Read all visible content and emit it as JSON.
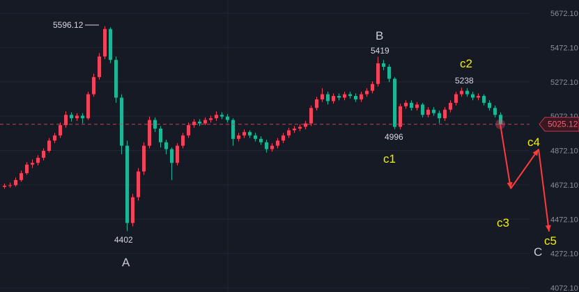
{
  "chart_data": {
    "type": "candlestick",
    "y_axis": {
      "ticks": [
        "5672.10",
        "5472.10",
        "5272.10",
        "5072.10",
        "4872.10",
        "4672.10",
        "4472.10",
        "4272.10",
        "4072.10"
      ],
      "tick_values": [
        5672.1,
        5472.1,
        5272.1,
        5072.1,
        4872.1,
        4672.1,
        4472.1,
        4272.1,
        4072.1
      ],
      "ylim": [
        4072.1,
        5672.1
      ],
      "position": "right"
    },
    "grid": true,
    "colors": {
      "up": "#f0435c",
      "down": "#1db597",
      "background": "#161a25",
      "grid": "#232733",
      "arrow": "#ff3b3b",
      "wave_label": "#f4f000"
    },
    "last_price": {
      "value": 5025.12,
      "label": "5025.12"
    },
    "ohlc": [
      [
        4660,
        4680,
        4650,
        4667
      ],
      [
        4667,
        4685,
        4655,
        4670
      ],
      [
        4670,
        4715,
        4662,
        4700
      ],
      [
        4700,
        4755,
        4690,
        4740
      ],
      [
        4740,
        4805,
        4730,
        4790
      ],
      [
        4790,
        4820,
        4770,
        4800
      ],
      [
        4800,
        4845,
        4785,
        4830
      ],
      [
        4830,
        4885,
        4815,
        4870
      ],
      [
        4870,
        4945,
        4860,
        4930
      ],
      [
        4930,
        4975,
        4915,
        4960
      ],
      [
        4960,
        5035,
        4945,
        5020
      ],
      [
        5020,
        5100,
        5005,
        5080
      ],
      [
        5080,
        5095,
        5040,
        5060
      ],
      [
        5060,
        5090,
        5045,
        5075
      ],
      [
        5075,
        5090,
        5030,
        5060
      ],
      [
        5060,
        5215,
        5050,
        5200
      ],
      [
        5200,
        5320,
        5185,
        5300
      ],
      [
        5300,
        5440,
        5285,
        5420
      ],
      [
        5420,
        5596.12,
        5405,
        5580
      ],
      [
        5580,
        5590,
        5380,
        5400
      ],
      [
        5400,
        5420,
        5150,
        5180
      ],
      [
        5180,
        5200,
        4850,
        4900
      ],
      [
        4900,
        4930,
        4402,
        4450
      ],
      [
        4450,
        4620,
        4430,
        4600
      ],
      [
        4600,
        4770,
        4580,
        4750
      ],
      [
        4750,
        4920,
        4730,
        4900
      ],
      [
        4900,
        5070,
        4885,
        5050
      ],
      [
        5050,
        5065,
        4980,
        5000
      ],
      [
        5000,
        5015,
        4890,
        4920
      ],
      [
        4920,
        4935,
        4850,
        4880
      ],
      [
        4880,
        4890,
        4700,
        4800
      ],
      [
        4800,
        4915,
        4785,
        4900
      ],
      [
        4900,
        4975,
        4885,
        4960
      ],
      [
        4960,
        5035,
        4945,
        5020
      ],
      [
        5020,
        5055,
        5005,
        5040
      ],
      [
        5040,
        5055,
        5015,
        5030
      ],
      [
        5030,
        5065,
        5020,
        5050
      ],
      [
        5050,
        5075,
        5035,
        5060
      ],
      [
        5060,
        5100,
        5045,
        5080
      ],
      [
        5080,
        5095,
        5055,
        5070
      ],
      [
        5070,
        5085,
        5035,
        5050
      ],
      [
        5050,
        5060,
        4900,
        4940
      ],
      [
        4940,
        4975,
        4925,
        4960
      ],
      [
        4960,
        4995,
        4945,
        4980
      ],
      [
        4980,
        4990,
        4945,
        4960
      ],
      [
        4960,
        4975,
        4925,
        4940
      ],
      [
        4940,
        4955,
        4905,
        4920
      ],
      [
        4920,
        4935,
        4860,
        4880
      ],
      [
        4880,
        4915,
        4865,
        4900
      ],
      [
        4900,
        4945,
        4885,
        4930
      ],
      [
        4930,
        4975,
        4915,
        4960
      ],
      [
        4960,
        5005,
        4945,
        4990
      ],
      [
        4990,
        5015,
        4975,
        5000
      ],
      [
        5000,
        5025,
        4985,
        5010
      ],
      [
        5010,
        5045,
        4995,
        5030
      ],
      [
        5030,
        5135,
        5015,
        5120
      ],
      [
        5120,
        5185,
        5105,
        5170
      ],
      [
        5170,
        5235,
        5155,
        5200
      ],
      [
        5200,
        5215,
        5140,
        5160
      ],
      [
        5160,
        5205,
        5145,
        5190
      ],
      [
        5190,
        5205,
        5165,
        5180
      ],
      [
        5180,
        5215,
        5165,
        5200
      ],
      [
        5200,
        5215,
        5175,
        5190
      ],
      [
        5190,
        5205,
        5155,
        5170
      ],
      [
        5170,
        5215,
        5155,
        5200
      ],
      [
        5200,
        5235,
        5185,
        5220
      ],
      [
        5220,
        5275,
        5205,
        5260
      ],
      [
        5260,
        5419,
        5245,
        5380
      ],
      [
        5380,
        5400,
        5340,
        5360
      ],
      [
        5360,
        5375,
        5270,
        5290
      ],
      [
        5290,
        5300,
        4996,
        5010
      ],
      [
        5010,
        5145,
        4995,
        5130
      ],
      [
        5130,
        5165,
        5115,
        5150
      ],
      [
        5150,
        5165,
        5105,
        5120
      ],
      [
        5120,
        5155,
        5105,
        5140
      ],
      [
        5140,
        5150,
        5065,
        5080
      ],
      [
        5080,
        5125,
        5065,
        5110
      ],
      [
        5110,
        5125,
        5075,
        5090
      ],
      [
        5090,
        5105,
        5030,
        5060
      ],
      [
        5060,
        5125,
        5045,
        5110
      ],
      [
        5110,
        5165,
        5095,
        5150
      ],
      [
        5150,
        5215,
        5135,
        5200
      ],
      [
        5200,
        5238,
        5185,
        5220
      ],
      [
        5220,
        5235,
        5185,
        5200
      ],
      [
        5200,
        5215,
        5165,
        5180
      ],
      [
        5180,
        5205,
        5165,
        5190
      ],
      [
        5190,
        5200,
        5135,
        5150
      ],
      [
        5150,
        5165,
        5105,
        5120
      ],
      [
        5120,
        5135,
        5065,
        5080
      ],
      [
        5080,
        5095,
        5010,
        5025
      ]
    ],
    "annotations": {
      "high_label": "5596.12",
      "low_label": "4402",
      "b_price": "5419",
      "c1_price": "4996",
      "c2_price": "5238",
      "wave_A": "A",
      "wave_B": "B",
      "wave_C": "C",
      "c1": "c1",
      "c2": "c2",
      "c3": "c3",
      "c4": "c4",
      "c5": "c5"
    },
    "projection_path": [
      5025.12,
      4650,
      4880,
      4400
    ]
  }
}
